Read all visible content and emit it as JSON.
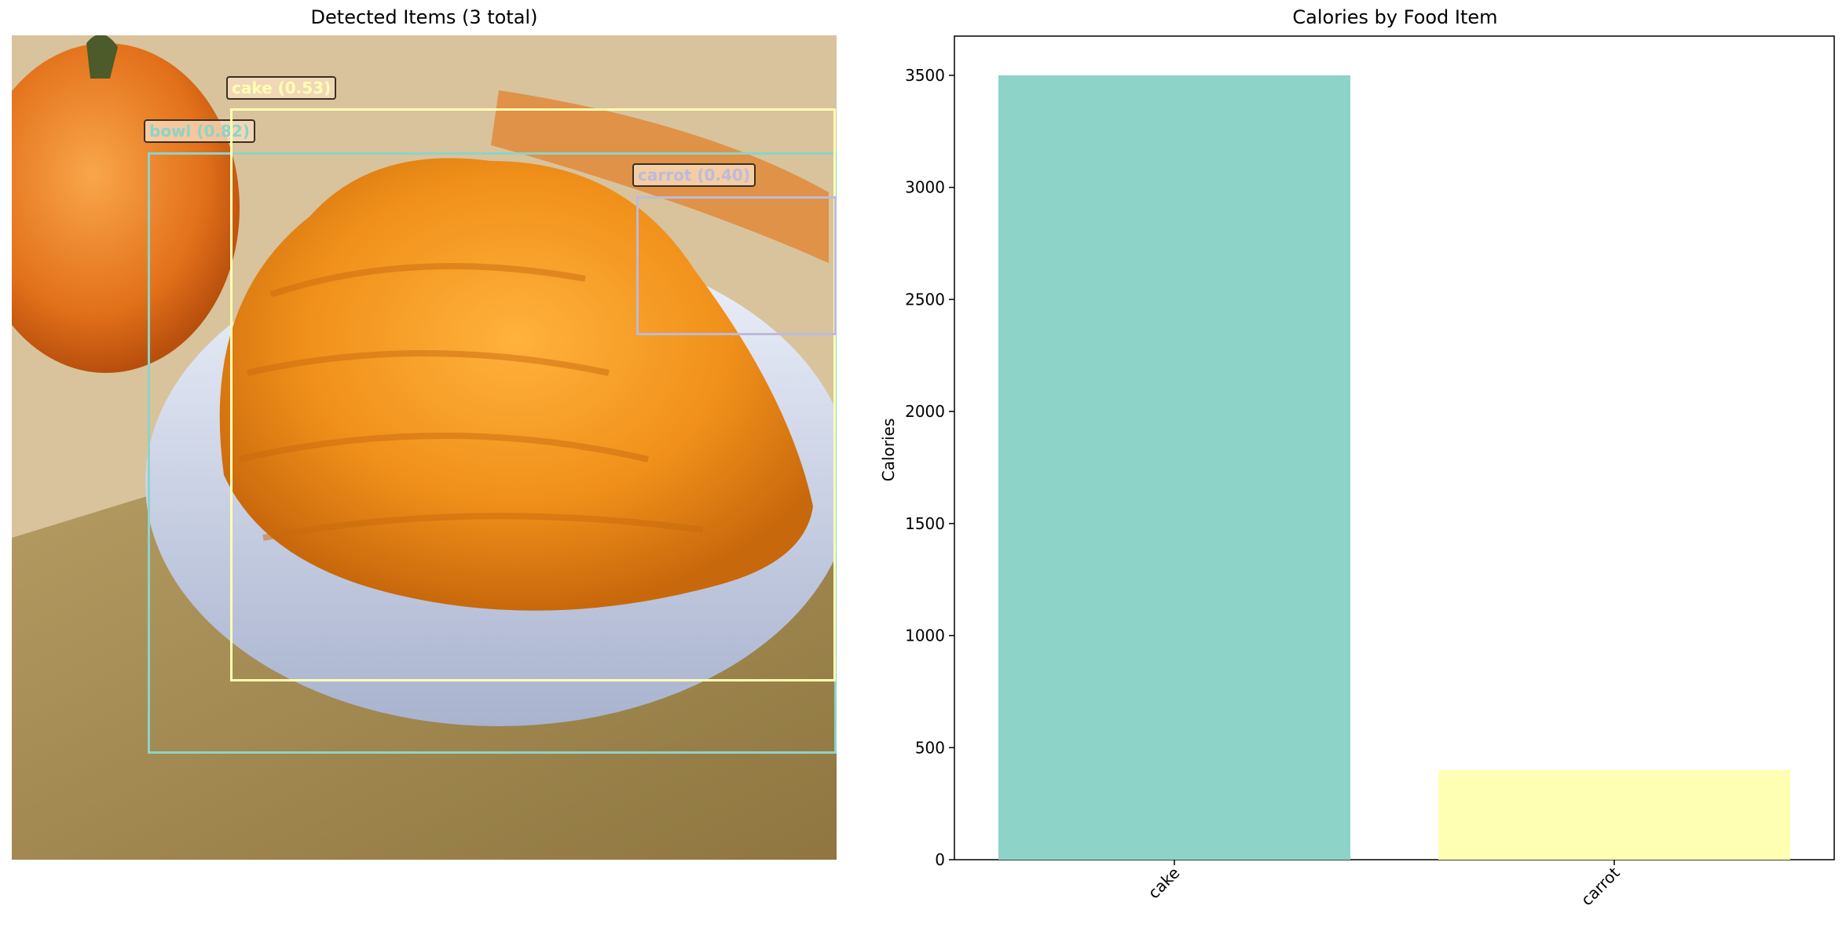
{
  "left_panel": {
    "title": "Detected Items (3 total)",
    "detections": [
      {
        "label": "bowl (0.82)",
        "color": "#8dd3c7"
      },
      {
        "label": "cake (0.53)",
        "color": "#ffffb3"
      },
      {
        "label": "carrot (0.40)",
        "color": "#bebada"
      }
    ]
  },
  "chart_data": {
    "type": "bar",
    "title": "Calories by Food Item",
    "xlabel": "",
    "ylabel": "Calories",
    "categories": [
      "cake",
      "carrot"
    ],
    "values": [
      3500,
      400
    ],
    "colors": [
      "#8dd3c7",
      "#ffffb3"
    ],
    "ylim": [
      0,
      3675
    ],
    "yticks": [
      0,
      500,
      1000,
      1500,
      2000,
      2500,
      3000,
      3500
    ],
    "ytick_labels": [
      "0",
      "500",
      "1000",
      "1500",
      "2000",
      "2500",
      "3000",
      "3500"
    ],
    "grid": false,
    "legend": "none"
  }
}
